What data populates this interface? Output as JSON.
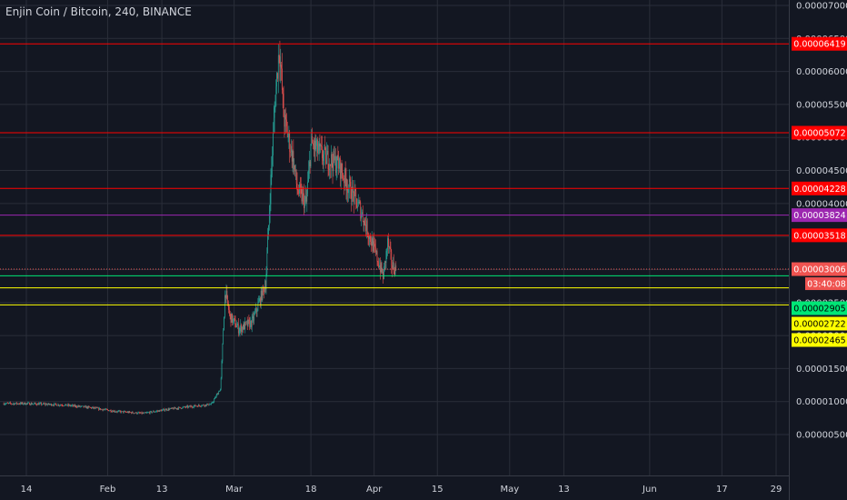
{
  "header": {
    "title": "Enjin Coin / Bitcoin, 240, BINANCE"
  },
  "countdown": "03:40:08",
  "colors": {
    "background": "#131722",
    "grid": "#2a2e39",
    "text": "#d1d4dc",
    "red": "#ff0000",
    "purple": "#9c27b0",
    "green": "#00e676",
    "yellow": "#ffff00",
    "up": "#26a69a",
    "down": "#ef5350"
  },
  "chart_data": {
    "type": "candlestick",
    "title": "Enjin Coin / Bitcoin, 240, BINANCE",
    "ylim": [
      2.8e-06,
      7e-05
    ],
    "y_ticks": [
      "0.00007000",
      "0.00006500",
      "0.00006000",
      "0.00005500",
      "0.00005000",
      "0.00004500",
      "0.00004000",
      "0.00003500",
      "0.00003000",
      "0.00002500",
      "0.00002000",
      "0.00001500",
      "0.00001000",
      "0.00000500"
    ],
    "x_ticks": [
      {
        "label": "14",
        "date": "2019-01-14"
      },
      {
        "label": "Feb",
        "date": "2019-02-01"
      },
      {
        "label": "13",
        "date": "2019-02-13"
      },
      {
        "label": "Mar",
        "date": "2019-03-01"
      },
      {
        "label": "18",
        "date": "2019-03-18"
      },
      {
        "label": "Apr",
        "date": "2019-04-01"
      },
      {
        "label": "15",
        "date": "2019-04-15"
      },
      {
        "label": "May",
        "date": "2019-05-01"
      },
      {
        "label": "13",
        "date": "2019-05-13"
      },
      {
        "label": "Jun",
        "date": "2019-06-01"
      },
      {
        "label": "17",
        "date": "2019-06-17"
      },
      {
        "label": "29",
        "date": "2019-06-29"
      }
    ],
    "price_lines": [
      {
        "value": 6.419e-05,
        "label": "0.00006419",
        "color": "#ff0000",
        "text_color": "#ffffff"
      },
      {
        "value": 5.072e-05,
        "label": "0.00005072",
        "color": "#ff0000",
        "text_color": "#ffffff"
      },
      {
        "value": 4.228e-05,
        "label": "0.00004228",
        "color": "#ff0000",
        "text_color": "#ffffff"
      },
      {
        "value": 3.824e-05,
        "label": "0.00003824",
        "color": "#9c27b0",
        "text_color": "#ffffff"
      },
      {
        "value": 3.518e-05,
        "label": "0.00003518",
        "color": "#ff0000",
        "text_color": "#ffffff"
      },
      {
        "value": 2.905e-05,
        "label": "0.00002905",
        "color": "#00e676",
        "text_color": "#000000"
      },
      {
        "value": 2.722e-05,
        "label": "0.00002722",
        "color": "#ffff00",
        "text_color": "#000000"
      },
      {
        "value": 2.465e-05,
        "label": "0.00002465",
        "color": "#ffff00",
        "text_color": "#000000"
      }
    ],
    "last_price": {
      "value": 3.006e-05,
      "label": "0.00003006",
      "color": "#ef5350"
    },
    "price_path": [
      {
        "date": "2019-01-09",
        "price": 9.7e-06
      },
      {
        "date": "2019-01-14",
        "price": 9.7e-06
      },
      {
        "date": "2019-01-22",
        "price": 9.5e-06
      },
      {
        "date": "2019-01-28",
        "price": 9.1e-06
      },
      {
        "date": "2019-02-03",
        "price": 8.5e-06
      },
      {
        "date": "2019-02-09",
        "price": 8.2e-06
      },
      {
        "date": "2019-02-14",
        "price": 8.8e-06
      },
      {
        "date": "2019-02-20",
        "price": 9.3e-06
      },
      {
        "date": "2019-02-24",
        "price": 9.6e-06
      },
      {
        "date": "2019-02-26",
        "price": 1.2e-05
      },
      {
        "date": "2019-02-27",
        "price": 2.7e-05
      },
      {
        "date": "2019-02-28",
        "price": 2.3e-05
      },
      {
        "date": "2019-03-02",
        "price": 2.1e-05
      },
      {
        "date": "2019-03-05",
        "price": 2.2e-05
      },
      {
        "date": "2019-03-07",
        "price": 2.6e-05
      },
      {
        "date": "2019-03-08",
        "price": 2.8e-05
      },
      {
        "date": "2019-03-09",
        "price": 4.2e-05
      },
      {
        "date": "2019-03-10",
        "price": 5.5e-05
      },
      {
        "date": "2019-03-11",
        "price": 6.4e-05
      },
      {
        "date": "2019-03-12",
        "price": 5.3e-05
      },
      {
        "date": "2019-03-14",
        "price": 4.7e-05
      },
      {
        "date": "2019-03-15",
        "price": 4.2e-05
      },
      {
        "date": "2019-03-17",
        "price": 4e-05
      },
      {
        "date": "2019-03-18",
        "price": 4.9e-05
      },
      {
        "date": "2019-03-21",
        "price": 4.7e-05
      },
      {
        "date": "2019-03-24",
        "price": 4.6e-05
      },
      {
        "date": "2019-03-26",
        "price": 4.3e-05
      },
      {
        "date": "2019-03-29",
        "price": 3.9e-05
      },
      {
        "date": "2019-03-31",
        "price": 3.5e-05
      },
      {
        "date": "2019-04-02",
        "price": 3.1e-05
      },
      {
        "date": "2019-04-03",
        "price": 2.9e-05
      },
      {
        "date": "2019-04-04",
        "price": 3.4e-05
      },
      {
        "date": "2019-04-05",
        "price": 3.05e-05
      },
      {
        "date": "2019-04-06",
        "price": 3e-05
      }
    ]
  }
}
